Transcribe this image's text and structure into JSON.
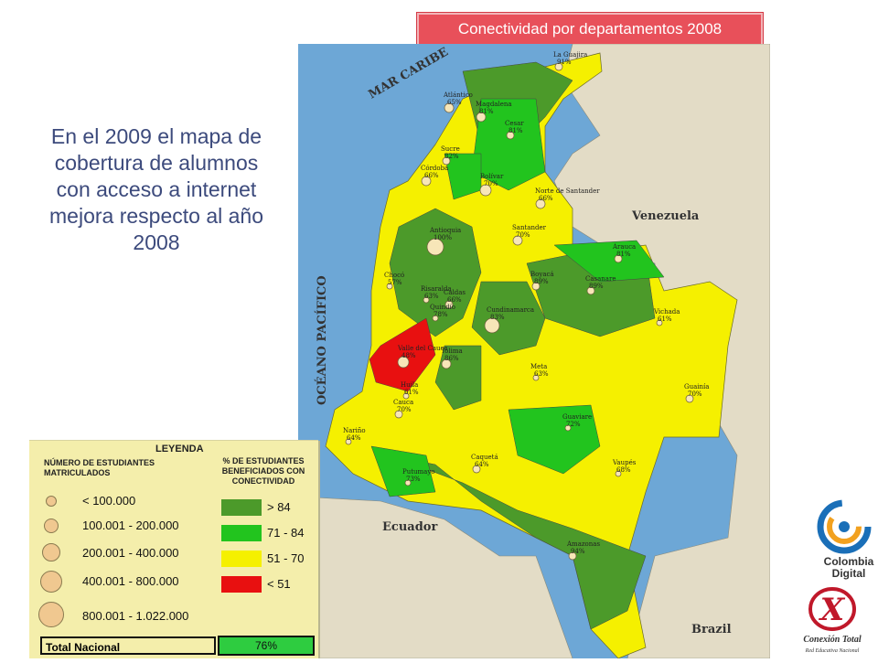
{
  "title_badge": "Conectividad por departamentos 2008",
  "caption": "En el 2009 el mapa de cobertura de alumnos con acceso a internet mejora respecto al año 2008",
  "map": {
    "sea_labels": [
      "MAR CARIBE",
      "OCÉANO PACÍFICO"
    ],
    "countries": [
      "Venezuela",
      "Ecuador",
      "Brazil"
    ],
    "departments": [
      {
        "name": "La Guajira",
        "value": "91%"
      },
      {
        "name": "Atlántico",
        "value": "65%"
      },
      {
        "name": "Magdalena",
        "value": "81%"
      },
      {
        "name": "Cesar",
        "value": "81%"
      },
      {
        "name": "Sucre",
        "value": "82%"
      },
      {
        "name": "Córdoba",
        "value": "66%"
      },
      {
        "name": "Bolívar",
        "value": "70%"
      },
      {
        "name": "Norte de Santander",
        "value": "66%"
      },
      {
        "name": "Antioquia",
        "value": "100%"
      },
      {
        "name": "Santander",
        "value": "70%"
      },
      {
        "name": "Arauca",
        "value": "81%"
      },
      {
        "name": "Boyacá",
        "value": "89%"
      },
      {
        "name": "Casanare",
        "value": "89%"
      },
      {
        "name": "Chocó",
        "value": "57%"
      },
      {
        "name": "Risaralda",
        "value": "63%"
      },
      {
        "name": "Caldas",
        "value": "66%"
      },
      {
        "name": "Cundinamarca",
        "value": "83%"
      },
      {
        "name": "Quindío",
        "value": "78%"
      },
      {
        "name": "Valle del Cauca",
        "value": "48%"
      },
      {
        "name": "Vichada",
        "value": "61%"
      },
      {
        "name": "Tolima",
        "value": "86%"
      },
      {
        "name": "Meta",
        "value": "63%"
      },
      {
        "name": "Huila",
        "value": "61%"
      },
      {
        "name": "Guainía",
        "value": "70%"
      },
      {
        "name": "Cauca",
        "value": "70%"
      },
      {
        "name": "Guaviare",
        "value": "72%"
      },
      {
        "name": "Nariño",
        "value": "64%"
      },
      {
        "name": "Caquetá",
        "value": "64%"
      },
      {
        "name": "Vaupés",
        "value": "68%"
      },
      {
        "name": "Putumayo",
        "value": "73%"
      },
      {
        "name": "Amazonas",
        "value": "94%"
      }
    ]
  },
  "legend": {
    "title": "LEYENDA",
    "left_header": "NÚMERO DE ESTUDIANTES MATRICULADOS",
    "right_header": "% DE ESTUDIANTES BENEFICIADOS CON CONECTIVIDAD",
    "size_ranges": [
      "< 100.000",
      "100.001 - 200.000",
      "200.001 - 400.000",
      "400.001 - 800.000",
      "800.001 - 1.022.000"
    ],
    "color_ranges": [
      {
        "label": "> 84",
        "color": "#4c9a2a"
      },
      {
        "label": "71 - 84",
        "color": "#22c41e"
      },
      {
        "label": "51 - 70",
        "color": "#f5f000"
      },
      {
        "label": "< 51",
        "color": "#e81010"
      }
    ],
    "total_label": "Total Nacional",
    "total_value": "76%"
  },
  "logos": {
    "logo1_text": [
      "Colombia",
      "Digital"
    ],
    "logo2_text": [
      "Conexión Total",
      "Red Educativa Nacional"
    ]
  },
  "colors": {
    "sea": "#6da7d6",
    "neighbor": "#e3dcc6",
    "dark_green": "#4c9a2a",
    "green": "#22c41e",
    "yellow": "#f5f000",
    "red": "#e81010"
  }
}
